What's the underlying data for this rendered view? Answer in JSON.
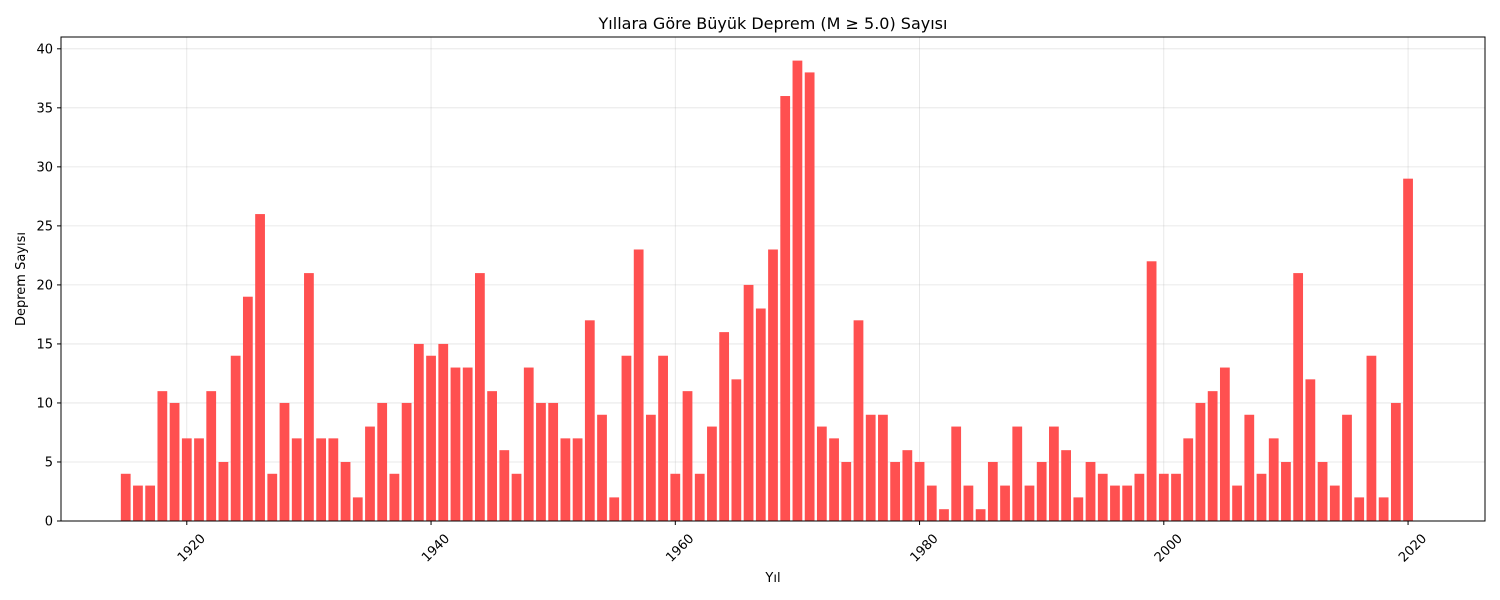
{
  "chart_data": {
    "type": "bar",
    "title": "Yıllara Göre Büyük Deprem (M ≥ 5.0) Sayısı",
    "xlabel": "Yıl",
    "ylabel": "Deprem Sayısı",
    "xlim": [
      1909.7,
      2026.3
    ],
    "ylim": [
      0,
      41
    ],
    "xticks": [
      1920,
      1940,
      1960,
      1980,
      2000,
      2020
    ],
    "yticks": [
      0,
      5,
      10,
      15,
      20,
      25,
      30,
      35,
      40
    ],
    "grid": true,
    "bar_color": "#ff5050",
    "x": [
      1915,
      1916,
      1917,
      1918,
      1919,
      1920,
      1921,
      1922,
      1923,
      1924,
      1925,
      1926,
      1927,
      1928,
      1929,
      1930,
      1931,
      1932,
      1933,
      1934,
      1935,
      1936,
      1937,
      1938,
      1939,
      1940,
      1941,
      1942,
      1943,
      1944,
      1945,
      1946,
      1947,
      1948,
      1949,
      1950,
      1951,
      1952,
      1953,
      1954,
      1955,
      1956,
      1957,
      1958,
      1959,
      1960,
      1961,
      1962,
      1963,
      1964,
      1965,
      1966,
      1967,
      1968,
      1969,
      1970,
      1971,
      1972,
      1973,
      1974,
      1975,
      1976,
      1977,
      1978,
      1979,
      1980,
      1981,
      1982,
      1983,
      1984,
      1985,
      1986,
      1987,
      1988,
      1989,
      1990,
      1991,
      1992,
      1993,
      1994,
      1995,
      1996,
      1997,
      1998,
      1999,
      2000,
      2001,
      2002,
      2003,
      2004,
      2005,
      2006,
      2007,
      2008,
      2009,
      2010,
      2011,
      2012,
      2013,
      2014,
      2015,
      2016,
      2017,
      2018,
      2019,
      2020
    ],
    "values": [
      4,
      3,
      3,
      11,
      10,
      7,
      7,
      11,
      5,
      14,
      19,
      26,
      4,
      10,
      7,
      21,
      7,
      7,
      5,
      2,
      8,
      10,
      4,
      10,
      15,
      14,
      15,
      13,
      13,
      21,
      11,
      6,
      4,
      13,
      10,
      10,
      7,
      7,
      17,
      9,
      2,
      14,
      23,
      9,
      14,
      4,
      11,
      4,
      8,
      16,
      12,
      20,
      18,
      23,
      36,
      39,
      38,
      8,
      7,
      5,
      17,
      9,
      9,
      5,
      6,
      5,
      3,
      1,
      8,
      3,
      1,
      5,
      3,
      8,
      3,
      5,
      8,
      6,
      2,
      5,
      4,
      3,
      3,
      4,
      22,
      4,
      4,
      7,
      10,
      11,
      13,
      3,
      9,
      4,
      7,
      5,
      21,
      12,
      5,
      3,
      9,
      2,
      14,
      2,
      10,
      29
    ]
  }
}
